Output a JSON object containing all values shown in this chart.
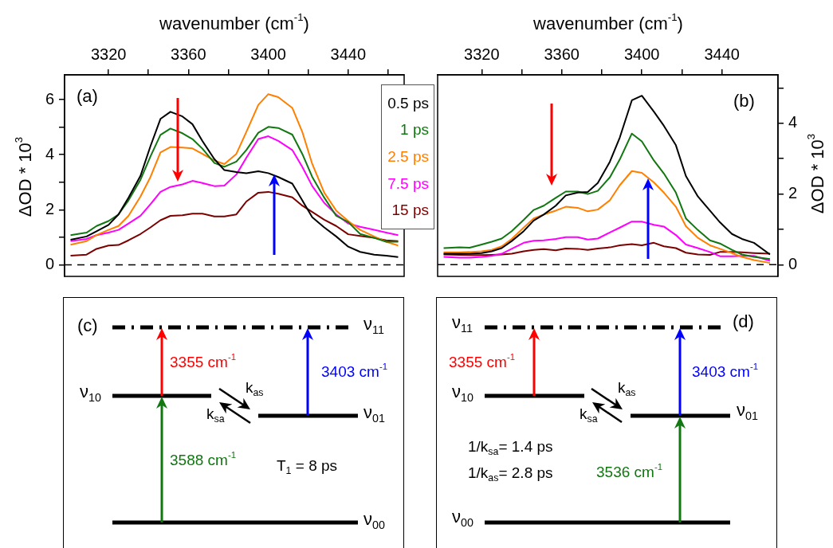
{
  "chart_data": [
    {
      "type": "line",
      "xlabel": "wavenumber (cm$^{-1}$)",
      "ylabel": "ΔOD * 10$^{3}$",
      "legend": "right",
      "annotations": [
        "(a)"
      ],
      "xlim": [
        3298,
        3468
      ],
      "xticks": [
        3320,
        {
          "value": 3340,
          "label": null
        },
        3360,
        {
          "value": 3380,
          "label": null
        },
        3400,
        {
          "value": 3420,
          "label": null
        },
        3440,
        {
          "value": 3460,
          "label": null
        }
      ],
      "ylim": [
        -0.42,
        6.9
      ],
      "yticks": [
        0,
        {
          "value": 1,
          "label": null
        },
        2,
        {
          "value": 3,
          "label": null
        },
        4,
        {
          "value": 5,
          "label": null
        },
        6
      ],
      "ref_lines": [
        {
          "axis": "y",
          "value": 0,
          "color": "#000000",
          "line_style": "dashed"
        }
      ],
      "x": [
        3301,
        3309,
        3314,
        3320,
        3325,
        3330,
        3336,
        3341,
        3346,
        3351,
        3357,
        3362,
        3367,
        3373,
        3378,
        3384,
        3389,
        3395,
        3400,
        3405,
        3412,
        3417,
        3422,
        3428,
        3434,
        3440,
        3446,
        3453,
        3459,
        3465
      ],
      "series": [
        {
          "name": "0.5 ps",
          "color": "#000000",
          "values": [
            0.91,
            1.03,
            1.22,
            1.45,
            1.83,
            2.44,
            3.23,
            4.31,
            5.3,
            5.56,
            5.39,
            5.11,
            4.5,
            3.84,
            3.44,
            3.37,
            3.33,
            3.4,
            3.33,
            3.19,
            2.95,
            2.34,
            1.73,
            1.36,
            1.03,
            0.66,
            0.47,
            0.37,
            0.33,
            0.28
          ]
        },
        {
          "name": "1 ps",
          "color": "#117711",
          "values": [
            1.08,
            1.17,
            1.41,
            1.59,
            1.83,
            2.34,
            3.09,
            3.94,
            4.72,
            4.95,
            4.78,
            4.57,
            4.22,
            3.7,
            3.56,
            3.75,
            4.17,
            4.8,
            5.01,
            4.97,
            4.73,
            4.03,
            3.19,
            2.44,
            1.78,
            1.55,
            1.12,
            0.98,
            0.84,
            0.84
          ]
        },
        {
          "name": "2.5 ps",
          "color": "#ff8000",
          "values": [
            0.73,
            0.86,
            1.08,
            1.27,
            1.41,
            1.78,
            2.48,
            3.19,
            4.08,
            4.28,
            4.26,
            4.23,
            4.03,
            3.79,
            3.66,
            4.03,
            4.83,
            5.81,
            6.2,
            6.09,
            5.7,
            4.83,
            3.66,
            2.62,
            1.97,
            1.59,
            1.27,
            1.03,
            0.84,
            0.7
          ]
        },
        {
          "name": "7.5 ps",
          "color": "#ff00ff",
          "values": [
            0.86,
            0.94,
            1.08,
            1.17,
            1.27,
            1.5,
            1.78,
            2.2,
            2.65,
            2.83,
            2.92,
            3.05,
            2.97,
            2.86,
            2.88,
            3.28,
            3.89,
            4.57,
            4.67,
            4.5,
            4.17,
            3.56,
            2.86,
            2.25,
            1.83,
            1.5,
            1.38,
            1.27,
            1.17,
            1.08
          ]
        },
        {
          "name": "15 ps",
          "color": "#7b0000",
          "values": [
            0.33,
            0.37,
            0.58,
            0.7,
            0.72,
            0.89,
            1.12,
            1.36,
            1.62,
            1.78,
            1.8,
            1.86,
            1.86,
            1.76,
            1.76,
            1.83,
            2.3,
            2.62,
            2.65,
            2.58,
            2.45,
            2.15,
            1.92,
            1.64,
            1.41,
            1.11,
            1.05,
            0.98,
            0.89,
            0.86
          ]
        }
      ]
    },
    {
      "type": "line",
      "xlabel": "wavenumber (cm$^{-1}$)",
      "ylabel": "ΔOD * 10$^{3}$",
      "annotations": [
        "(b)"
      ],
      "xlim": [
        3298,
        3468
      ],
      "xticks": [
        3320,
        {
          "value": 3340,
          "label": null
        },
        3360,
        {
          "value": 3380,
          "label": null
        },
        3400,
        {
          "value": 3420,
          "label": null
        },
        3440
      ],
      "ylim": [
        -0.33,
        5.37
      ],
      "yticks": [
        0,
        {
          "value": 1,
          "label": null
        },
        2,
        {
          "value": 3,
          "label": null
        },
        4,
        {
          "value": 5,
          "label": null
        }
      ],
      "ref_lines": [
        {
          "axis": "y",
          "value": 0,
          "color": "#000000",
          "line_style": "dashed"
        }
      ],
      "x": [
        3301,
        3309,
        3314,
        3320,
        3325,
        3330,
        3335,
        3341,
        3346,
        3351,
        3357,
        3362,
        3368,
        3373,
        3378,
        3384,
        3389,
        3395,
        3400,
        3406,
        3411,
        3417,
        3422,
        3428,
        3434,
        3439,
        3445,
        3450,
        3456,
        3464
      ],
      "series": [
        {
          "color": "#000000",
          "values": [
            0.31,
            0.31,
            0.31,
            0.33,
            0.38,
            0.47,
            0.67,
            0.95,
            1.25,
            1.42,
            1.67,
            1.96,
            2.04,
            2.06,
            2.31,
            2.91,
            3.6,
            4.65,
            4.78,
            4.33,
            3.93,
            3.38,
            2.51,
            1.93,
            1.53,
            1.2,
            0.87,
            0.73,
            0.62,
            0.29
          ]
        },
        {
          "color": "#117711",
          "values": [
            0.47,
            0.49,
            0.48,
            0.57,
            0.65,
            0.74,
            0.95,
            1.27,
            1.55,
            1.67,
            1.89,
            2.07,
            2.07,
            2.0,
            2.09,
            2.47,
            2.98,
            3.71,
            3.49,
            2.95,
            2.58,
            2.04,
            1.31,
            0.98,
            0.69,
            0.6,
            0.42,
            0.29,
            0.22,
            0.16
          ]
        },
        {
          "color": "#ff8000",
          "values": [
            0.35,
            0.35,
            0.36,
            0.38,
            0.42,
            0.52,
            0.73,
            1.05,
            1.31,
            1.42,
            1.53,
            1.64,
            1.61,
            1.51,
            1.56,
            1.82,
            2.25,
            2.65,
            2.6,
            2.33,
            2.04,
            1.64,
            1.09,
            0.76,
            0.55,
            0.45,
            0.33,
            0.22,
            0.13,
            0.05
          ]
        },
        {
          "color": "#ff00ff",
          "values": [
            0.22,
            0.2,
            0.2,
            0.22,
            0.25,
            0.31,
            0.45,
            0.62,
            0.68,
            0.69,
            0.73,
            0.78,
            0.78,
            0.71,
            0.74,
            0.91,
            1.05,
            1.22,
            1.22,
            1.13,
            1.08,
            0.84,
            0.57,
            0.47,
            0.36,
            0.24,
            0.24,
            0.25,
            0.25,
            0.11
          ]
        },
        {
          "color": "#7b0000",
          "values": [
            0.29,
            0.28,
            0.27,
            0.27,
            0.28,
            0.29,
            0.31,
            0.38,
            0.42,
            0.44,
            0.41,
            0.46,
            0.45,
            0.42,
            0.46,
            0.49,
            0.55,
            0.58,
            0.55,
            0.62,
            0.52,
            0.47,
            0.34,
            0.29,
            0.28,
            0.36,
            0.36,
            0.35,
            0.33,
            0.31
          ]
        }
      ]
    },
    {
      "type": "other",
      "annotations": [
        "(c)",
        "ν$_{11}$",
        "ν$_{10}$",
        "ν$_{01}$",
        "ν$_{00}$",
        "3355 cm$^{-1}$",
        "3403 cm$^{-1}$",
        "k$_{as}$",
        "k$_{sa}$",
        "3588 cm$^{-1}$",
        "T$_{1}$ = 8 ps"
      ]
    },
    {
      "type": "other",
      "annotations": [
        "ν$_{11}$",
        "(d)",
        "3355 cm$^{-1}$",
        "ν$_{10}$",
        "k$_{as}$",
        "3403 cm$^{-1}$",
        "k$_{sa}$",
        "ν$_{01}$",
        "1/k$_{sa}$= 1.4 ps",
        "1/k$_{as}$= 2.8 ps",
        "3536 cm$^{-1}$",
        "ν$_{00}$"
      ]
    }
  ]
}
